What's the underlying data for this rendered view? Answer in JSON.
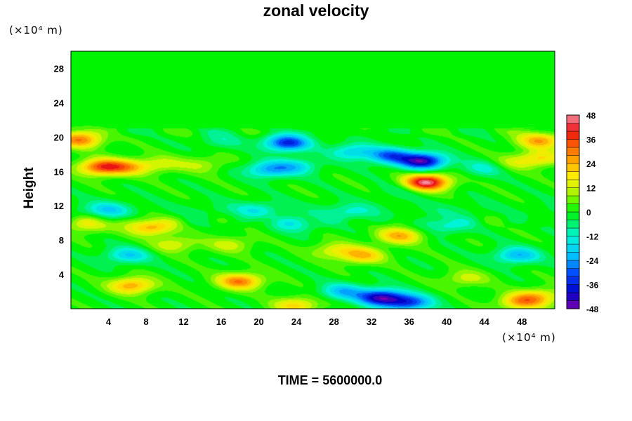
{
  "chart_data": {
    "type": "heatmap",
    "title": "zonal velocity",
    "ylabel": "Height",
    "xlabel": "",
    "x_unit": "(×10⁴ m)",
    "y_unit": "(×10⁴ m)",
    "xlim": [
      0,
      51.5
    ],
    "ylim": [
      0,
      30
    ],
    "x_ticks": [
      4,
      8,
      12,
      16,
      20,
      24,
      28,
      32,
      36,
      40,
      44,
      48
    ],
    "y_ticks": [
      4,
      8,
      12,
      16,
      20,
      24,
      28
    ],
    "colorbar": {
      "min": -48,
      "max": 48,
      "step": 4,
      "ticks": [
        48,
        36,
        24,
        12,
        0,
        -12,
        -24,
        -36,
        -48
      ]
    },
    "features": [
      {
        "x": 23,
        "y": 19.3,
        "value": -36
      },
      {
        "x": 16,
        "y": 19.6,
        "value": -8
      },
      {
        "x": 37.5,
        "y": 17.2,
        "value": -44
      },
      {
        "x": 34,
        "y": 17.8,
        "value": -28
      },
      {
        "x": 30,
        "y": 18.3,
        "value": -18
      },
      {
        "x": 38,
        "y": 14.8,
        "value": 38
      },
      {
        "x": 37,
        "y": 14.3,
        "value": 18
      },
      {
        "x": 3.2,
        "y": 16.5,
        "value": 34
      },
      {
        "x": 6,
        "y": 16.5,
        "value": 20
      },
      {
        "x": 9.5,
        "y": 16.8,
        "value": 12
      },
      {
        "x": 14,
        "y": 16.8,
        "value": 10
      },
      {
        "x": 50,
        "y": 17.5,
        "value": 18
      },
      {
        "x": 47,
        "y": 17,
        "value": 10
      },
      {
        "x": 1,
        "y": 19.7,
        "value": 30
      },
      {
        "x": 50,
        "y": 19.6,
        "value": 26
      },
      {
        "x": 21,
        "y": 16.2,
        "value": -22
      },
      {
        "x": 24,
        "y": 16.6,
        "value": -16
      },
      {
        "x": 44,
        "y": 16.4,
        "value": -12
      },
      {
        "x": 36,
        "y": 14,
        "value": -14
      },
      {
        "x": 35,
        "y": 8.5,
        "value": 24
      },
      {
        "x": 31,
        "y": 6.2,
        "value": 22
      },
      {
        "x": 28,
        "y": 6.8,
        "value": 14
      },
      {
        "x": 33,
        "y": 1.3,
        "value": -42
      },
      {
        "x": 36,
        "y": 0.7,
        "value": -32
      },
      {
        "x": 29,
        "y": 2,
        "value": -20
      },
      {
        "x": 48,
        "y": 0.8,
        "value": 26
      },
      {
        "x": 50,
        "y": 1.5,
        "value": 16
      },
      {
        "x": 24,
        "y": 0.4,
        "value": 20
      },
      {
        "x": 47.5,
        "y": 6.2,
        "value": -22
      },
      {
        "x": 6,
        "y": 6.2,
        "value": -18
      },
      {
        "x": 6.5,
        "y": 2.7,
        "value": 26
      },
      {
        "x": 18,
        "y": 3.2,
        "value": 30
      },
      {
        "x": 4,
        "y": 11.5,
        "value": -14
      },
      {
        "x": 20,
        "y": 11.5,
        "value": -12
      },
      {
        "x": 30,
        "y": 11.2,
        "value": -10
      },
      {
        "x": 2,
        "y": 9.8,
        "value": 16
      },
      {
        "x": 8.5,
        "y": 9.5,
        "value": 26
      },
      {
        "x": 11,
        "y": 7.5,
        "value": 14
      },
      {
        "x": 24,
        "y": 9.9,
        "value": -14
      },
      {
        "x": 40,
        "y": 9.7,
        "value": -14
      },
      {
        "x": 17,
        "y": 7.5,
        "value": 12
      },
      {
        "x": 42,
        "y": 3.5,
        "value": 12
      }
    ]
  },
  "footer": {
    "time_label": "TIME = 5600000.0"
  }
}
